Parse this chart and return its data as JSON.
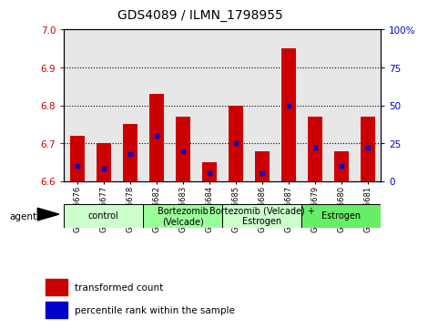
{
  "title": "GDS4089 / ILMN_1798955",
  "samples": [
    "GSM766676",
    "GSM766677",
    "GSM766678",
    "GSM766682",
    "GSM766683",
    "GSM766684",
    "GSM766685",
    "GSM766686",
    "GSM766687",
    "GSM766679",
    "GSM766680",
    "GSM766681"
  ],
  "red_values": [
    6.72,
    6.7,
    6.75,
    6.83,
    6.77,
    6.65,
    6.8,
    6.68,
    6.95,
    6.77,
    6.68,
    6.77
  ],
  "blue_percentiles": [
    10,
    8,
    18,
    30,
    20,
    5,
    25,
    5,
    50,
    22,
    10,
    22
  ],
  "y_min": 6.6,
  "y_max": 7.0,
  "y_ticks": [
    6.6,
    6.7,
    6.8,
    6.9,
    7.0
  ],
  "right_y_ticks": [
    0,
    25,
    50,
    75,
    100
  ],
  "right_y_labels": [
    "0",
    "25",
    "50",
    "75",
    "100%"
  ],
  "groups": [
    {
      "label": "control",
      "start": 0,
      "end": 3,
      "color": "#ccffcc"
    },
    {
      "label": "Bortezomib\n(Velcade)",
      "start": 3,
      "end": 6,
      "color": "#99ff99"
    },
    {
      "label": "Bortezomib (Velcade) +\nEstrogen",
      "start": 6,
      "end": 9,
      "color": "#ccffcc"
    },
    {
      "label": "Estrogen",
      "start": 9,
      "end": 12,
      "color": "#66ee66"
    }
  ],
  "bar_color": "#cc0000",
  "blue_color": "#0000cc",
  "bar_bottom": 6.6,
  "bar_width": 0.55,
  "legend_red": "transformed count",
  "legend_blue": "percentile rank within the sample",
  "agent_label": "agent",
  "background_color": "#ffffff",
  "tick_color_left": "#cc0000",
  "tick_color_right": "#0000cc",
  "title_fontsize": 10,
  "sample_fontsize": 6,
  "group_fontsize": 7
}
